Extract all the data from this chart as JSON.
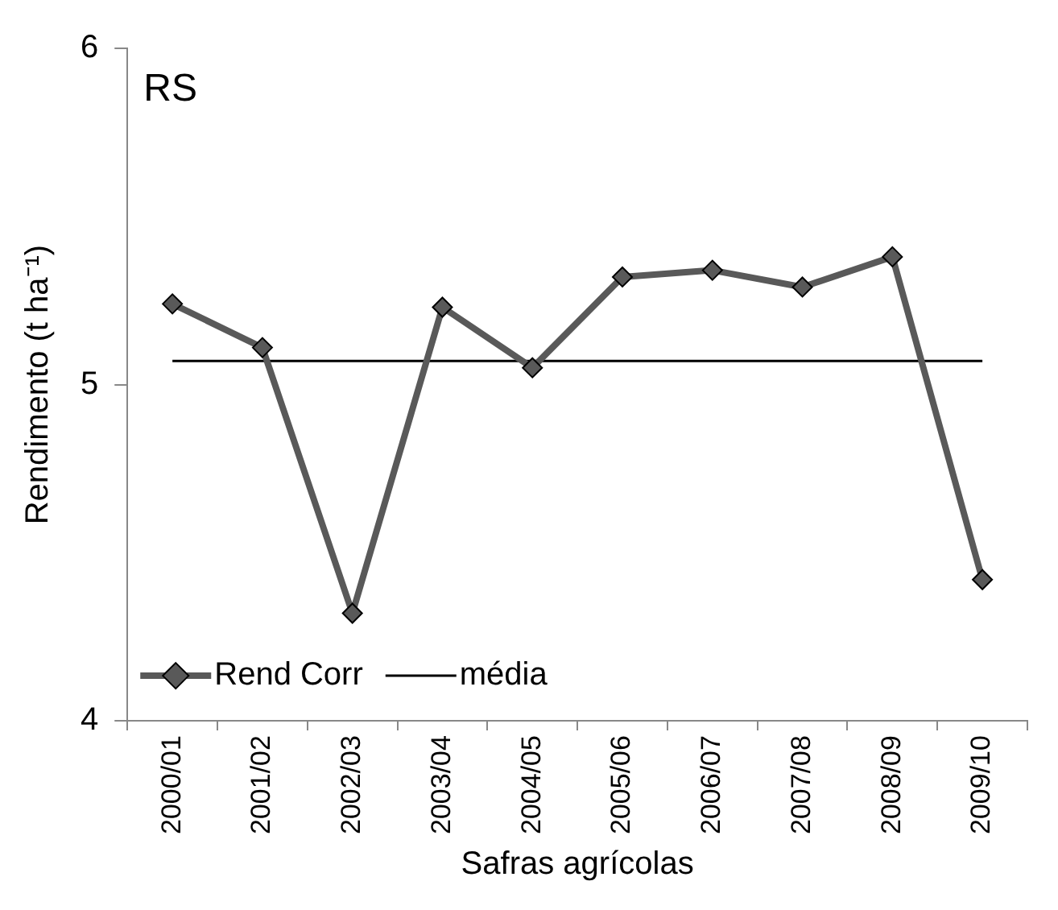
{
  "chart_data": {
    "type": "line",
    "xlabel": "Safras agrícolas",
    "ylabel": "Rendimento (t ha⁻¹)",
    "annotations": [
      "RS"
    ],
    "categories": [
      "2000/01",
      "2001/02",
      "2002/03",
      "2003/04",
      "2004/05",
      "2005/06",
      "2006/07",
      "2007/08",
      "2008/09",
      "2009/10"
    ],
    "series": [
      {
        "name": "Rend Corr",
        "color": "#595959",
        "marker": "diamond",
        "values": [
          5.24,
          5.11,
          4.32,
          5.23,
          5.05,
          5.32,
          5.34,
          5.29,
          5.38,
          4.42
        ]
      },
      {
        "name": "média",
        "color": "#000000",
        "marker": "none",
        "values": [
          5.07,
          5.07,
          5.07,
          5.07,
          5.07,
          5.07,
          5.07,
          5.07,
          5.07,
          5.07
        ]
      }
    ],
    "ylim": [
      4,
      6
    ],
    "yticks": [
      4,
      5,
      6
    ],
    "grid": false,
    "legend": "bottom left"
  }
}
